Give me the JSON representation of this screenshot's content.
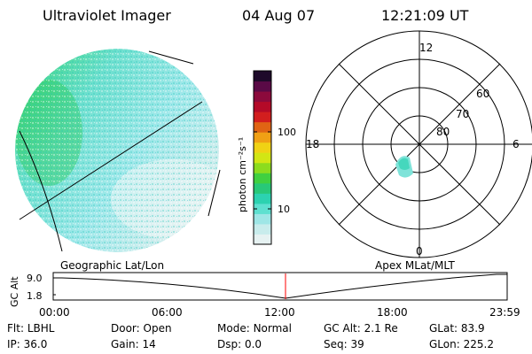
{
  "header": {
    "instrument": "Ultraviolet Imager",
    "date": "04 Aug 07",
    "time": "12:21:09 UT"
  },
  "colorbar": {
    "unit_label": "photon cm⁻²s⁻¹",
    "ticks": [
      "100",
      "10"
    ],
    "colors": [
      "#e6f2f2",
      "#c8ecec",
      "#9ee6e6",
      "#5ee0d0",
      "#2cd2b0",
      "#28c878",
      "#40d040",
      "#8cdc1e",
      "#d2e614",
      "#f0d214",
      "#f0a014",
      "#e06414",
      "#d21e1e",
      "#b40a28",
      "#8c0a3c",
      "#5a0a46",
      "#1e0a2a"
    ]
  },
  "polar": {
    "mlt_labels": {
      "top": "12",
      "left": "18",
      "right": "6",
      "bottom": "0"
    },
    "lat_labels": [
      "60",
      "70",
      "80"
    ]
  },
  "timeline": {
    "left_label": "Geographic Lat/Lon",
    "right_label": "Apex  MLat/MLT",
    "axis_title": "GC Alt",
    "y_ticks": [
      "9.0",
      "1.8"
    ],
    "x_ticks": [
      "00:00",
      "06:00",
      "12:00",
      "18:00",
      "23:59"
    ],
    "marker_color": "#ff0000"
  },
  "info": [
    [
      {
        "k": "Flt:",
        "v": "LBHL"
      },
      {
        "k": "Door:",
        "v": "Open"
      },
      {
        "k": "Mode:",
        "v": "Normal"
      },
      {
        "k": "GC Alt:",
        "v": "2.1 Re"
      },
      {
        "k": "GLat:",
        "v": "83.9"
      }
    ],
    [
      {
        "k": "IP:",
        "v": "36.0"
      },
      {
        "k": "Gain:",
        "v": "14"
      },
      {
        "k": "Dsp:",
        "v": "0.0"
      },
      {
        "k": "Seq:",
        "v": "39"
      },
      {
        "k": "GLon:",
        "v": "225.2"
      }
    ]
  ]
}
